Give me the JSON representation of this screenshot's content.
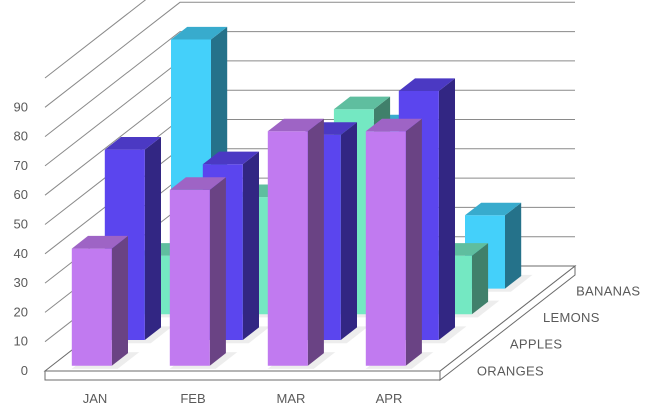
{
  "chart_data": {
    "type": "bar",
    "title": "",
    "xlabel": "",
    "ylabel": "",
    "ylim": [
      0,
      90
    ],
    "y_ticks": [
      "0",
      "10",
      "20",
      "30",
      "40",
      "50",
      "60",
      "70",
      "80",
      "90"
    ],
    "categories": [
      "JAN",
      "FEB",
      "MAR",
      "APR"
    ],
    "grid": true,
    "series": [
      {
        "name": "ORANGES",
        "values": [
          40,
          60,
          80,
          80
        ],
        "color": "#C17AF0"
      },
      {
        "name": "APPLES",
        "values": [
          65,
          60,
          70,
          85
        ],
        "color": "#5B45EE"
      },
      {
        "name": "LEMONS",
        "values": [
          20,
          40,
          70,
          20
        ],
        "color": "#74E8C2"
      },
      {
        "name": "BANANAS",
        "values": [
          85,
          45,
          55,
          25
        ],
        "color": "#44D0FA"
      }
    ]
  }
}
